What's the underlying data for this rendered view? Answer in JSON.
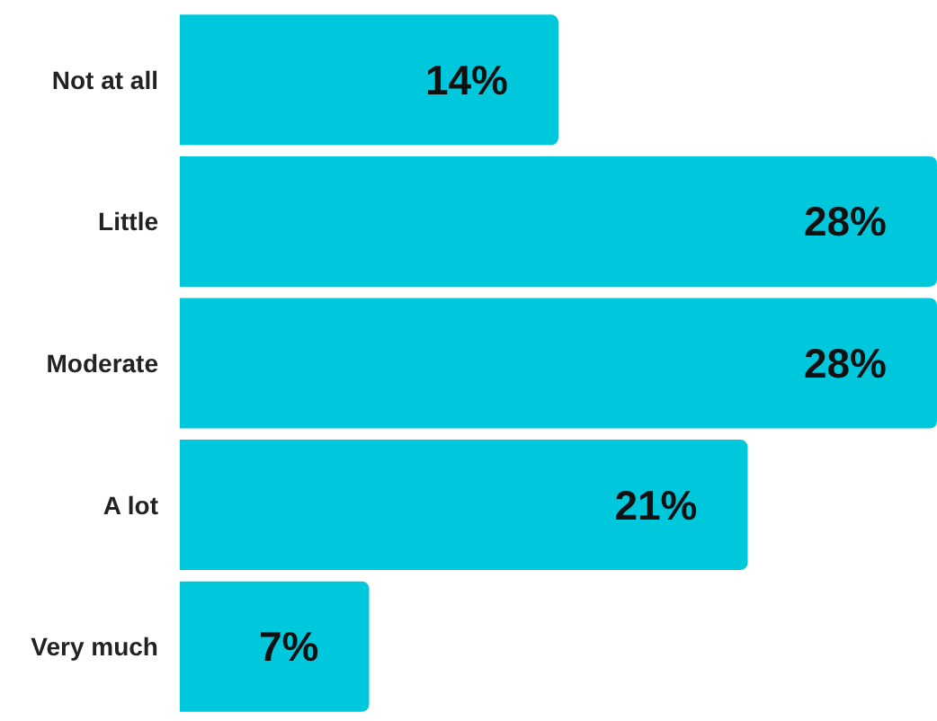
{
  "chart_data": {
    "type": "bar",
    "orientation": "horizontal",
    "categories": [
      "Not at all",
      "Little",
      "Moderate",
      "A lot",
      "Very much"
    ],
    "values": [
      14,
      28,
      28,
      21,
      7
    ],
    "value_labels": [
      "14%",
      "28%",
      "28%",
      "21%",
      "7%"
    ],
    "color": "#00c8dc"
  }
}
